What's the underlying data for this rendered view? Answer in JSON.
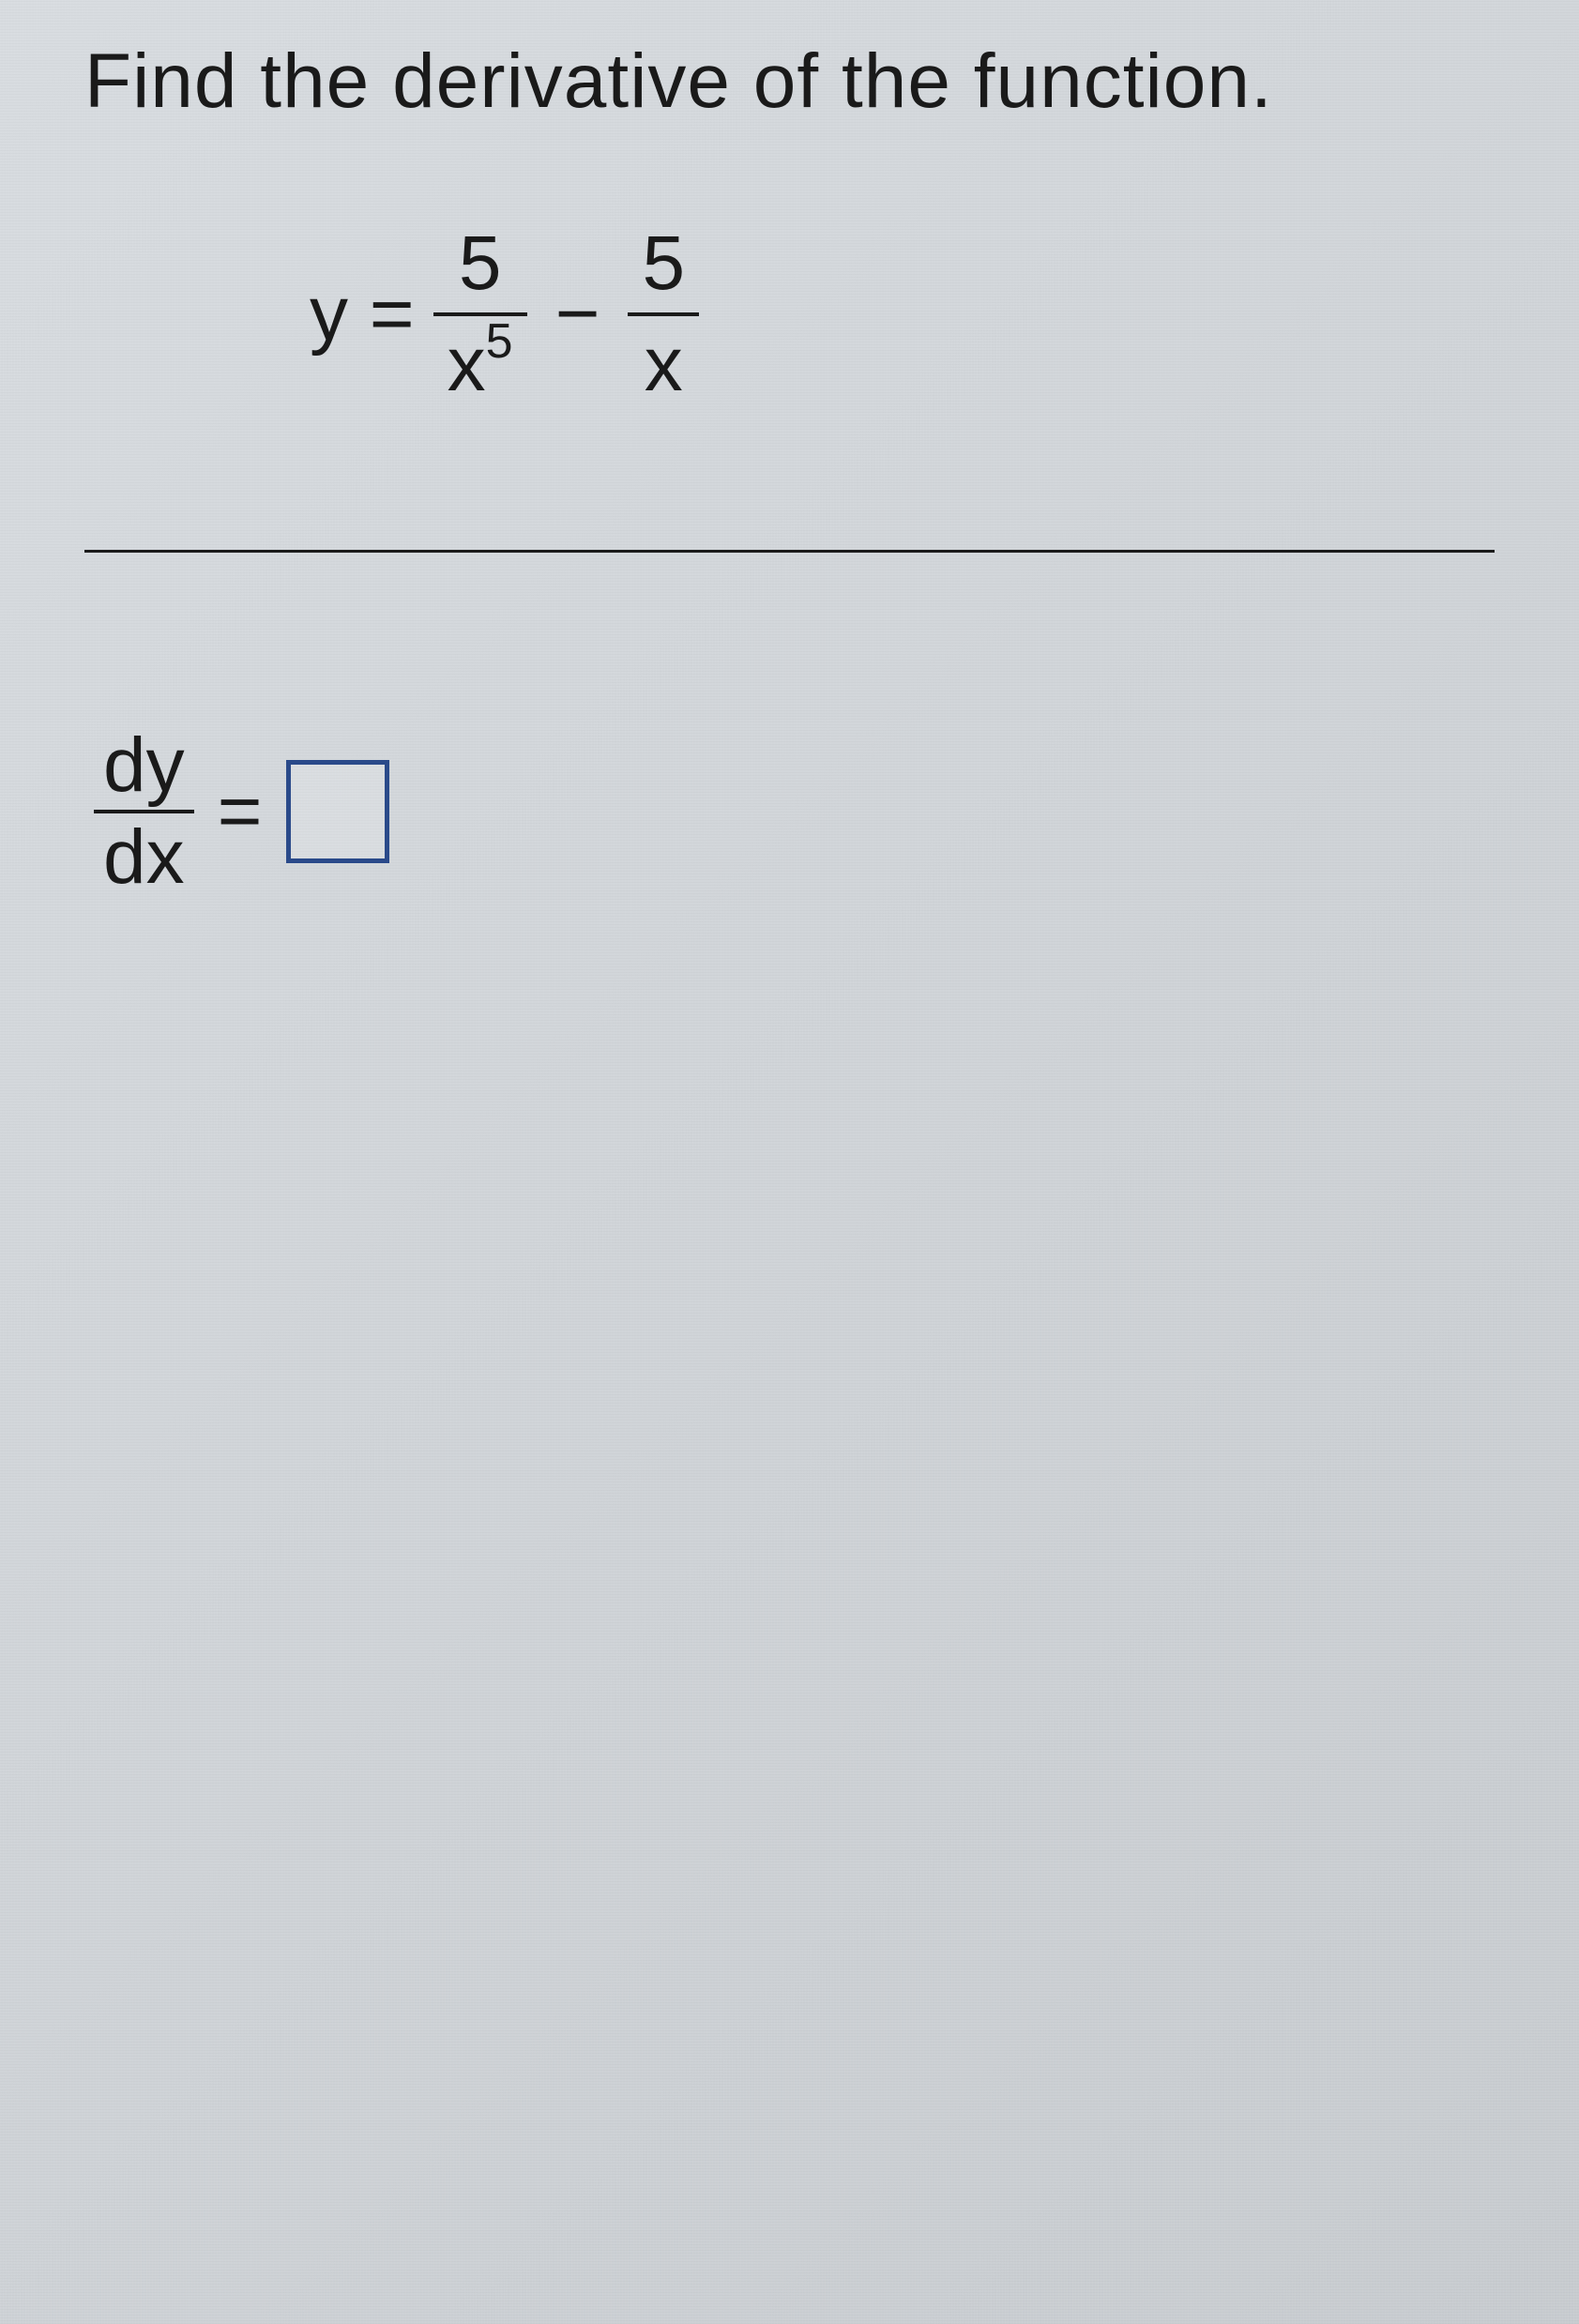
{
  "problem": {
    "instruction": "Find the derivative of the function.",
    "equation": {
      "lhs": "y =",
      "term1": {
        "numerator": "5",
        "denominator_base": "x",
        "denominator_exp": "5"
      },
      "operator": "−",
      "term2": {
        "numerator": "5",
        "denominator": "x"
      }
    }
  },
  "answer": {
    "lhs_num": "dy",
    "lhs_den": "dx",
    "equals": "="
  },
  "style": {
    "text_color": "#1a1a1a",
    "box_border_color": "#2a4a8a",
    "background_gradient_start": "#d8dce0",
    "background_gradient_end": "#c8ccd0",
    "instruction_fontsize": 82,
    "math_fontsize": 82,
    "superscript_fontsize": 52,
    "divider_thickness": 3,
    "fraction_bar_thickness": 4,
    "box_size": 110,
    "box_border_width": 5
  }
}
